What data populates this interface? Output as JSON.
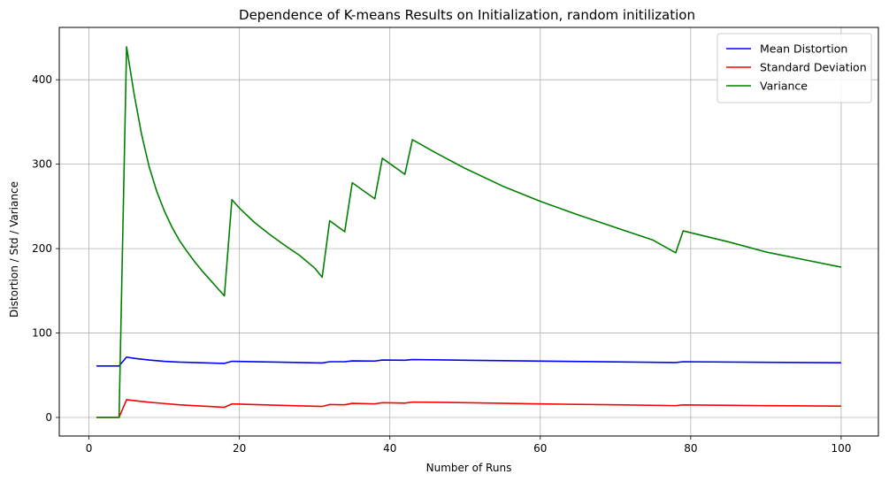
{
  "chart_data": {
    "type": "line",
    "title": "Dependence of K-means Results on Initialization, random initilization",
    "xlabel": "Number of Runs",
    "ylabel": "Distortion / Std / Variance",
    "xlim": [
      -3.95,
      104.95
    ],
    "ylim": [
      -22,
      462
    ],
    "xticks": [
      0,
      20,
      40,
      60,
      80,
      100
    ],
    "yticks": [
      0,
      100,
      200,
      300,
      400
    ],
    "grid": true,
    "legend_position": "top-right",
    "series": [
      {
        "name": "Mean Distortion",
        "color": "#0000ff",
        "points": [
          [
            1,
            61
          ],
          [
            2,
            61
          ],
          [
            3,
            61
          ],
          [
            4,
            61
          ],
          [
            5,
            71.5
          ],
          [
            6,
            70
          ],
          [
            8,
            68
          ],
          [
            10,
            66.5
          ],
          [
            12,
            65.5
          ],
          [
            14,
            65
          ],
          [
            16,
            64.5
          ],
          [
            18,
            64
          ],
          [
            19,
            66.5
          ],
          [
            25,
            65.5
          ],
          [
            31,
            64.5
          ],
          [
            32,
            66
          ],
          [
            34,
            66
          ],
          [
            35,
            67
          ],
          [
            38,
            66.8
          ],
          [
            39,
            68
          ],
          [
            42,
            67.8
          ],
          [
            43,
            68.5
          ],
          [
            50,
            67.8
          ],
          [
            60,
            66.7
          ],
          [
            70,
            65.8
          ],
          [
            78,
            65
          ],
          [
            79,
            66
          ],
          [
            90,
            65.3
          ],
          [
            100,
            64.8
          ]
        ]
      },
      {
        "name": "Standard Deviation",
        "color": "#ff0000",
        "points": [
          [
            1,
            0
          ],
          [
            2,
            0
          ],
          [
            3,
            0
          ],
          [
            4,
            0
          ],
          [
            5,
            21
          ],
          [
            6,
            20
          ],
          [
            8,
            18
          ],
          [
            10,
            16.5
          ],
          [
            12,
            15
          ],
          [
            14,
            14
          ],
          [
            16,
            13
          ],
          [
            18,
            12
          ],
          [
            19,
            16
          ],
          [
            25,
            14.5
          ],
          [
            31,
            13
          ],
          [
            32,
            15.3
          ],
          [
            34,
            15
          ],
          [
            35,
            16.7
          ],
          [
            38,
            16.1
          ],
          [
            39,
            17.5
          ],
          [
            42,
            17
          ],
          [
            43,
            18.2
          ],
          [
            50,
            17.5
          ],
          [
            60,
            16
          ],
          [
            70,
            15
          ],
          [
            78,
            14
          ],
          [
            79,
            14.9
          ],
          [
            90,
            14
          ],
          [
            100,
            13.4
          ]
        ]
      },
      {
        "name": "Variance",
        "color": "#008000",
        "points": [
          [
            1,
            0
          ],
          [
            2,
            0
          ],
          [
            3,
            0
          ],
          [
            4,
            0
          ],
          [
            5,
            439
          ],
          [
            6,
            383
          ],
          [
            7,
            335
          ],
          [
            8,
            297
          ],
          [
            9,
            268
          ],
          [
            10,
            245
          ],
          [
            11,
            226
          ],
          [
            12,
            210
          ],
          [
            13,
            197
          ],
          [
            14,
            185
          ],
          [
            15,
            174
          ],
          [
            16,
            164
          ],
          [
            17,
            154
          ],
          [
            18,
            144
          ],
          [
            19,
            258
          ],
          [
            20,
            248
          ],
          [
            22,
            231
          ],
          [
            24,
            217
          ],
          [
            26,
            204
          ],
          [
            28,
            192
          ],
          [
            30,
            177
          ],
          [
            31,
            166
          ],
          [
            32,
            233
          ],
          [
            34,
            220
          ],
          [
            35,
            278
          ],
          [
            38,
            259
          ],
          [
            39,
            307
          ],
          [
            42,
            288
          ],
          [
            43,
            329
          ],
          [
            46,
            314
          ],
          [
            50,
            295
          ],
          [
            55,
            274
          ],
          [
            60,
            256
          ],
          [
            65,
            240
          ],
          [
            70,
            225
          ],
          [
            75,
            210
          ],
          [
            78,
            195
          ],
          [
            79,
            221
          ],
          [
            85,
            208
          ],
          [
            90,
            196
          ],
          [
            95,
            187
          ],
          [
            100,
            178
          ]
        ]
      }
    ]
  }
}
